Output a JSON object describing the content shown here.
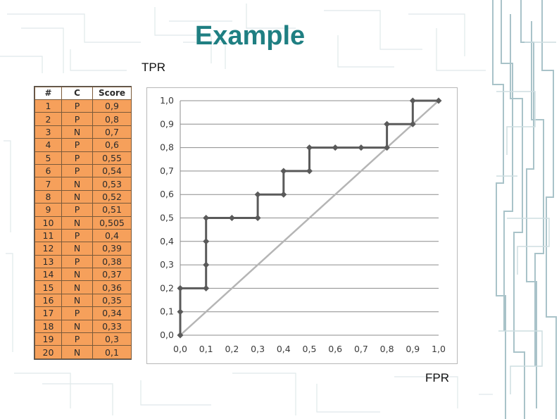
{
  "slide": {
    "title": "Example",
    "y_axis_caption": "TPR",
    "x_axis_caption": "FPR"
  },
  "table": {
    "headers": [
      "#",
      "C",
      "Score"
    ],
    "rows": [
      [
        "1",
        "P",
        "0,9"
      ],
      [
        "2",
        "P",
        "0,8"
      ],
      [
        "3",
        "N",
        "0,7"
      ],
      [
        "4",
        "P",
        "0,6"
      ],
      [
        "5",
        "P",
        "0,55"
      ],
      [
        "6",
        "P",
        "0,54"
      ],
      [
        "7",
        "N",
        "0,53"
      ],
      [
        "8",
        "N",
        "0,52"
      ],
      [
        "9",
        "P",
        "0,51"
      ],
      [
        "10",
        "N",
        "0,505"
      ],
      [
        "11",
        "P",
        "0,4"
      ],
      [
        "12",
        "N",
        "0,39"
      ],
      [
        "13",
        "P",
        "0,38"
      ],
      [
        "14",
        "N",
        "0,37"
      ],
      [
        "15",
        "N",
        "0,36"
      ],
      [
        "16",
        "N",
        "0,35"
      ],
      [
        "17",
        "P",
        "0,34"
      ],
      [
        "18",
        "N",
        "0,33"
      ],
      [
        "19",
        "P",
        "0,3"
      ],
      [
        "20",
        "N",
        "0,1"
      ]
    ],
    "cell_color": "#f6a05b"
  },
  "chart_data": {
    "type": "line",
    "xlabel": "FPR",
    "ylabel": "TPR",
    "xlim": [
      0,
      1
    ],
    "ylim": [
      0,
      1
    ],
    "grid": true,
    "x_ticks": [
      "0,0",
      "0,1",
      "0,2",
      "0,3",
      "0,4",
      "0,5",
      "0,6",
      "0,7",
      "0,8",
      "0,9",
      "1,0"
    ],
    "y_ticks": [
      "0,0",
      "0,1",
      "0,2",
      "0,3",
      "0,4",
      "0,5",
      "0,6",
      "0,7",
      "0,8",
      "0,9",
      "1,0"
    ],
    "series": [
      {
        "color": "#5a5a5a",
        "points": [
          [
            0,
            0
          ],
          [
            0,
            0.1
          ],
          [
            0,
            0.2
          ],
          [
            0.1,
            0.2
          ],
          [
            0.1,
            0.3
          ],
          [
            0.1,
            0.4
          ],
          [
            0.1,
            0.5
          ],
          [
            0.2,
            0.5
          ],
          [
            0.3,
            0.5
          ],
          [
            0.3,
            0.6
          ],
          [
            0.4,
            0.6
          ],
          [
            0.4,
            0.7
          ],
          [
            0.5,
            0.7
          ],
          [
            0.5,
            0.8
          ],
          [
            0.6,
            0.8
          ],
          [
            0.7,
            0.8
          ],
          [
            0.8,
            0.8
          ],
          [
            0.8,
            0.9
          ],
          [
            0.9,
            0.9
          ],
          [
            0.9,
            1.0
          ],
          [
            1.0,
            1.0
          ]
        ]
      },
      {
        "color": "#b5b5b5",
        "points": [
          [
            0,
            0
          ],
          [
            1,
            1
          ]
        ]
      }
    ]
  }
}
